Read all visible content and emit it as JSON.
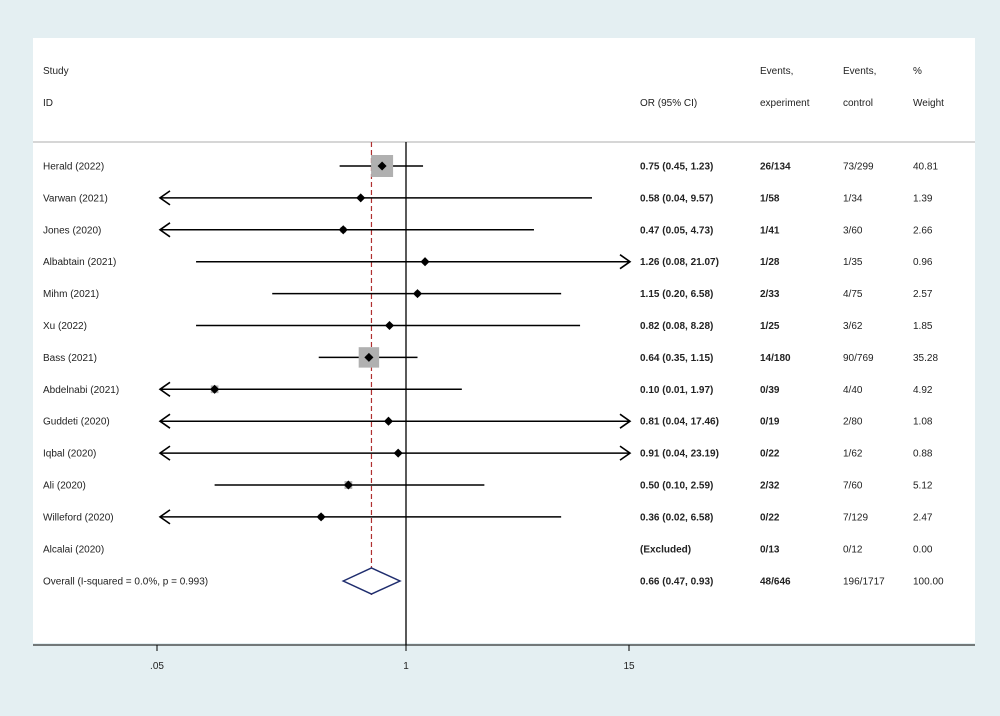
{
  "chart_data": {
    "type": "forest",
    "headers": {
      "study": [
        "Study",
        "ID"
      ],
      "or": [
        "",
        "OR (95% CI)"
      ],
      "events_exp": [
        "Events,",
        "experiment"
      ],
      "events_ctl": [
        "Events,",
        "control"
      ],
      "weight": [
        "%",
        "Weight"
      ]
    },
    "x_ticks": [
      {
        "value": 0.05,
        "label": ".05"
      },
      {
        "value": 1,
        "label": "1"
      },
      {
        "value": 15,
        "label": "15"
      }
    ],
    "null_line": 1,
    "xlim": [
      0.05,
      15
    ],
    "overall_line": 0.66,
    "studies": [
      {
        "id": "Herald  (2022)",
        "or": 0.75,
        "lo": 0.45,
        "hi": 1.23,
        "ci_text": "0.75 (0.45, 1.23)",
        "exp": "26/134",
        "ctl": "73/299",
        "weight": "40.81",
        "w": 40.81
      },
      {
        "id": "Varwan (2021)",
        "or": 0.58,
        "lo": 0.04,
        "hi": 9.57,
        "ci_text": "0.58 (0.04, 9.57)",
        "exp": "1/58",
        "ctl": "1/34",
        "weight": "1.39",
        "w": 1.39
      },
      {
        "id": "Jones (2020)",
        "or": 0.47,
        "lo": 0.05,
        "hi": 4.73,
        "ci_text": "0.47 (0.05, 4.73)",
        "exp": "1/41",
        "ctl": "3/60",
        "weight": "2.66",
        "w": 2.66
      },
      {
        "id": "Albabtain    (2021)",
        "or": 1.26,
        "lo": 0.08,
        "hi": 21.07,
        "ci_text": "1.26 (0.08, 21.07)",
        "exp": "1/28",
        "ctl": "1/35",
        "weight": "0.96",
        "w": 0.96
      },
      {
        "id": "Mihm (2021)",
        "or": 1.15,
        "lo": 0.2,
        "hi": 6.58,
        "ci_text": "1.15 (0.20, 6.58)",
        "exp": "2/33",
        "ctl": "4/75",
        "weight": "2.57",
        "w": 2.57
      },
      {
        "id": "Xu (2022)",
        "or": 0.82,
        "lo": 0.08,
        "hi": 8.28,
        "ci_text": "0.82 (0.08, 8.28)",
        "exp": "1/25",
        "ctl": "3/62",
        "weight": "1.85",
        "w": 1.85
      },
      {
        "id": "Bass (2021)",
        "or": 0.64,
        "lo": 0.35,
        "hi": 1.15,
        "ci_text": "0.64 (0.35, 1.15)",
        "exp": "14/180",
        "ctl": "90/769",
        "weight": "35.28",
        "w": 35.28
      },
      {
        "id": "Abdelnabi (2021)",
        "or": 0.1,
        "lo": 0.01,
        "hi": 1.97,
        "ci_text": "0.10 (0.01, 1.97)",
        "exp": "0/39",
        "ctl": "4/40",
        "weight": "4.92",
        "w": 4.92
      },
      {
        "id": "Guddeti (2020)",
        "or": 0.81,
        "lo": 0.04,
        "hi": 17.46,
        "ci_text": "0.81 (0.04, 17.46)",
        "exp": "0/19",
        "ctl": "2/80",
        "weight": "1.08",
        "w": 1.08
      },
      {
        "id": "Iqbal (2020)",
        "or": 0.91,
        "lo": 0.04,
        "hi": 23.19,
        "ci_text": "0.91 (0.04, 23.19)",
        "exp": "0/22",
        "ctl": "1/62",
        "weight": "0.88",
        "w": 0.88
      },
      {
        "id": "Ali (2020)",
        "or": 0.5,
        "lo": 0.1,
        "hi": 2.59,
        "ci_text": "0.50 (0.10, 2.59)",
        "exp": "2/32",
        "ctl": "7/60",
        "weight": "5.12",
        "w": 5.12
      },
      {
        "id": "Willeford (2020)",
        "or": 0.36,
        "lo": 0.02,
        "hi": 6.58,
        "ci_text": "0.36 (0.02, 6.58)",
        "exp": "0/22",
        "ctl": "7/129",
        "weight": "2.47",
        "w": 2.47
      },
      {
        "id": "Alcalai (2020)",
        "or": null,
        "lo": null,
        "hi": null,
        "ci_text": "(Excluded)",
        "exp": "0/13",
        "ctl": "0/12",
        "weight": "0.00",
        "w": 0
      }
    ],
    "overall": {
      "id": "Overall  (I-squared = 0.0%, p = 0.993)",
      "or": 0.66,
      "lo": 0.47,
      "hi": 0.93,
      "ci_text": "0.66 (0.47, 0.93)",
      "exp": "48/646",
      "ctl": "196/1717",
      "weight": "100.00"
    },
    "colors": {
      "background": "#e4eff2",
      "panel": "#ffffff",
      "line": "#000000",
      "box": "#b0b0b0",
      "diamond": "#1f2d6e",
      "overall_line": "#b03030"
    }
  }
}
